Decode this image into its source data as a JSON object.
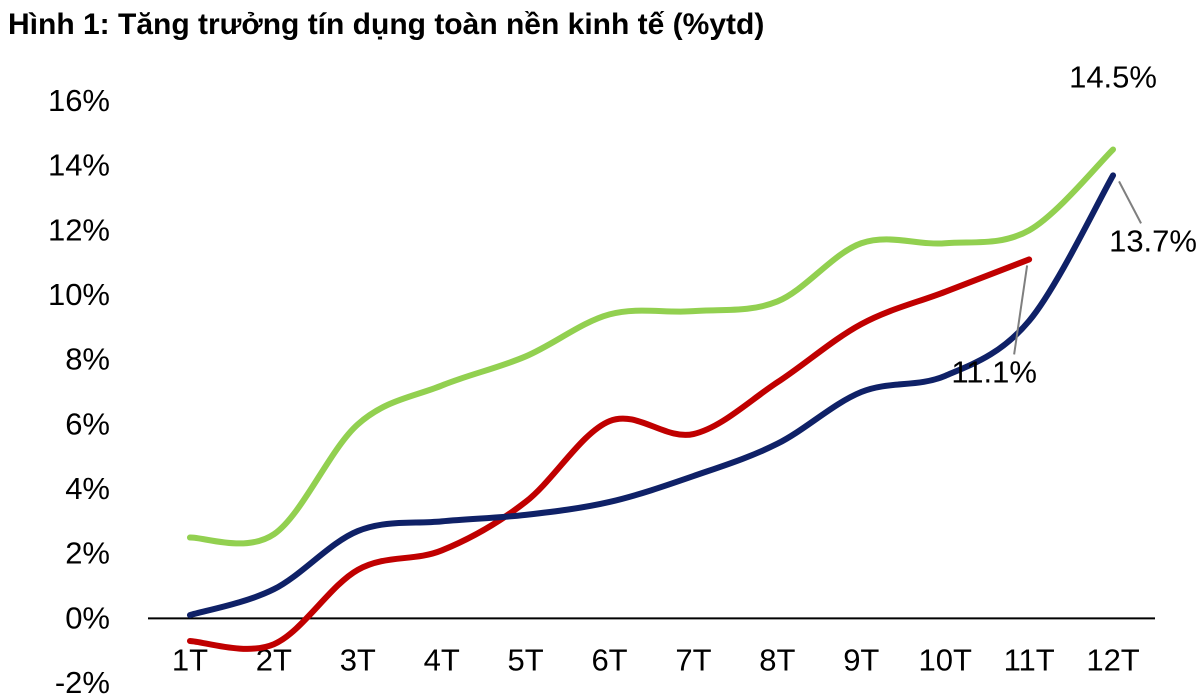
{
  "title": "Hình 1: Tăng trưởng tín dụng toàn nền kinh tế (%ytd)",
  "chart_data": {
    "type": "line",
    "categories": [
      "1T",
      "2T",
      "3T",
      "4T",
      "5T",
      "6T",
      "7T",
      "8T",
      "9T",
      "10T",
      "11T",
      "12T"
    ],
    "y_tick_labels": [
      "-2%",
      "0%",
      "2%",
      "4%",
      "6%",
      "8%",
      "10%",
      "12%",
      "14%",
      "16%"
    ],
    "ylim": [
      -2,
      16
    ],
    "y_tick_step": 2,
    "grid": false,
    "legend": "none",
    "series": [
      {
        "color": "#92D050",
        "values": [
          2.5,
          2.6,
          6.0,
          7.2,
          8.1,
          9.4,
          9.5,
          9.8,
          11.6,
          11.6,
          12.0,
          14.5
        ]
      },
      {
        "color": "#C00000",
        "values": [
          -0.7,
          -0.8,
          1.5,
          2.1,
          3.6,
          6.1,
          5.7,
          7.3,
          9.1,
          10.1,
          11.1,
          null
        ]
      },
      {
        "color": "#0F2167",
        "values": [
          0.1,
          0.9,
          2.7,
          3.0,
          3.2,
          3.6,
          4.4,
          5.4,
          7.0,
          7.5,
          9.2,
          13.7
        ]
      }
    ],
    "annotations": [
      {
        "text": "14.5%",
        "series": 0,
        "index": 11
      },
      {
        "text": "13.7%",
        "series": 2,
        "index": 11
      },
      {
        "text": "11.1%",
        "series": 1,
        "index": 10
      }
    ]
  }
}
